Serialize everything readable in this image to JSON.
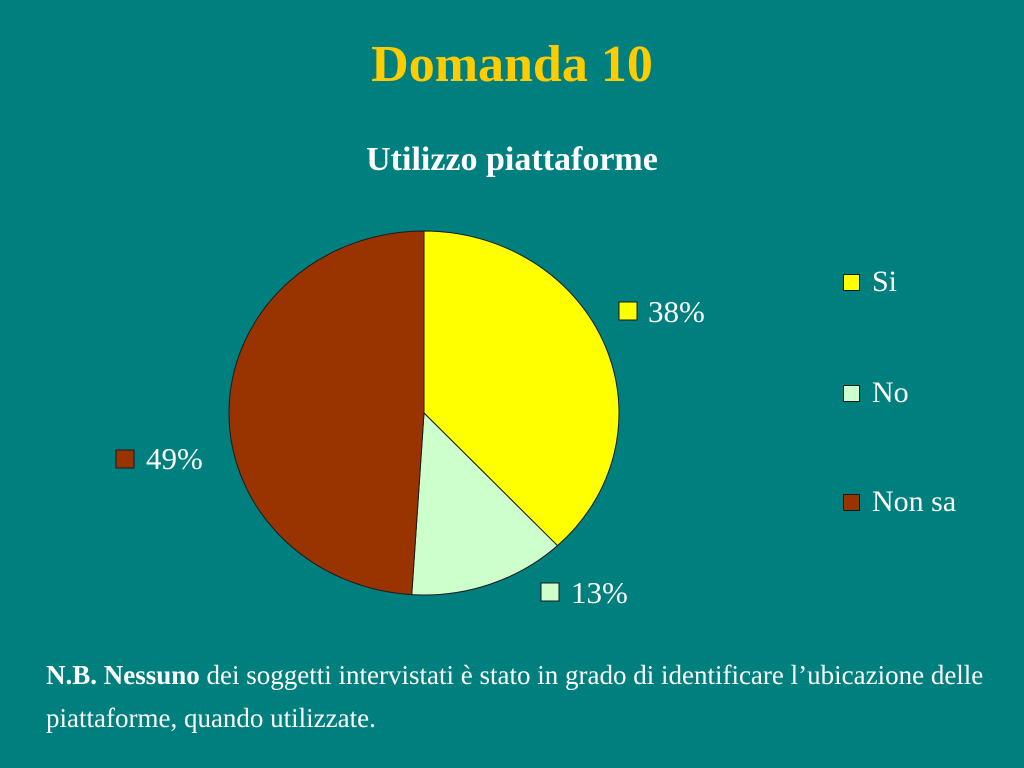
{
  "slide": {
    "title": "Domanda 10"
  },
  "chart_data": {
    "type": "pie",
    "title": "Utilizzo piattaforme",
    "categories": [
      "Si",
      "No",
      "Non sa"
    ],
    "values": [
      38,
      13,
      49
    ],
    "data_labels": [
      "38%",
      "13%",
      "49%"
    ],
    "colors": [
      "#ffff00",
      "#ccffcc",
      "#993300"
    ],
    "legend_position": "right"
  },
  "note": {
    "lead": "N.B. Nessuno",
    "text": " dei soggetti intervistati è stato in grado di identificare l’ubicazione delle piattaforme, quando utilizzate."
  },
  "colors": {
    "background": "#007f7f",
    "title": "#ffcc00",
    "text": "#ffffff"
  }
}
